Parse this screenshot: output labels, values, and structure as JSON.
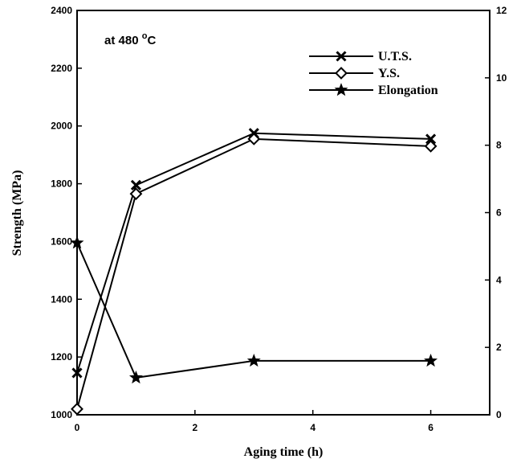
{
  "chart_data": {
    "type": "line",
    "annotation": {
      "text": "at 480 ",
      "superscript": "o",
      "unit": "C"
    },
    "xlabel": "Aging  time (h)",
    "ylabel": "Strength (MPa)",
    "y2label": "",
    "xlim": [
      0,
      7
    ],
    "ylim": [
      1000,
      2400
    ],
    "y2lim": [
      0,
      12
    ],
    "x_ticks": [
      0,
      2,
      4,
      6
    ],
    "y_ticks": [
      1000,
      1200,
      1400,
      1600,
      1800,
      2000,
      2200,
      2400
    ],
    "y2_ticks": [
      0,
      2,
      4,
      6,
      8,
      10,
      12
    ],
    "grid": false,
    "legend_position": "top-right",
    "series": [
      {
        "name": "U.T.S.",
        "axis": "left",
        "marker": "x",
        "x": [
          0,
          1,
          3,
          6
        ],
        "y": [
          1145,
          1795,
          1975,
          1955
        ]
      },
      {
        "name": "Y.S.",
        "axis": "left",
        "marker": "diamond",
        "x": [
          0,
          1,
          3,
          6
        ],
        "y": [
          1020,
          1765,
          1955,
          1930
        ]
      },
      {
        "name": "Elongation",
        "axis": "right",
        "marker": "star",
        "x": [
          0,
          1,
          3,
          6
        ],
        "y": [
          5.1,
          1.1,
          1.6,
          1.6
        ]
      }
    ]
  }
}
